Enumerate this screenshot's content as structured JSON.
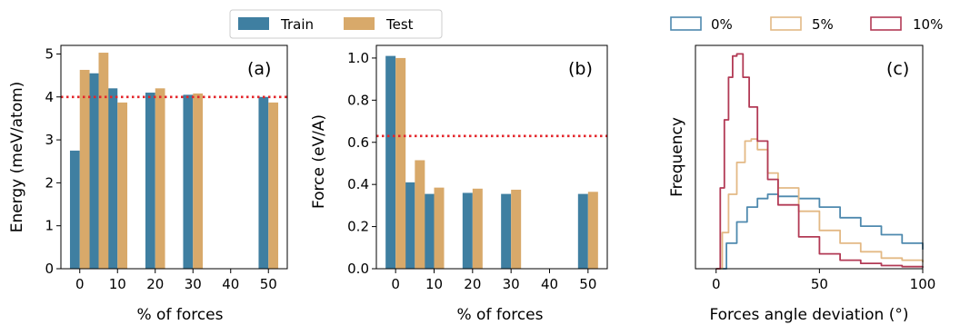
{
  "colors": {
    "train": "#3f7fa1",
    "test": "#d8a96a",
    "ref_line": "#e3262b",
    "h0": "#4e89ae",
    "h5": "#e3b985",
    "h10": "#b23a55"
  },
  "legend_left": {
    "items": [
      "Train",
      "Test"
    ]
  },
  "legend_right": {
    "items": [
      "0%",
      "5%",
      "10%"
    ]
  },
  "chart_data": [
    {
      "type": "bar",
      "panel_label": "(a)",
      "xlabel": "% of forces",
      "ylabel": "Energy (meV/atom)",
      "x": [
        0,
        5,
        10,
        20,
        30,
        50
      ],
      "xticks": [
        "0",
        "10",
        "20",
        "30",
        "40",
        "50"
      ],
      "yticks": [
        "0",
        "1",
        "2",
        "3",
        "4",
        "5"
      ],
      "xlim": [
        -5,
        55
      ],
      "ylim": [
        0,
        5.2
      ],
      "series": [
        {
          "name": "Train",
          "values": [
            2.75,
            4.55,
            4.2,
            4.1,
            4.05,
            4.0
          ]
        },
        {
          "name": "Test",
          "values": [
            4.63,
            5.03,
            3.87,
            4.2,
            4.08,
            3.87
          ]
        }
      ],
      "ref_line": 4.0
    },
    {
      "type": "bar",
      "panel_label": "(b)",
      "xlabel": "% of forces",
      "ylabel": "Force (eV/A)",
      "x": [
        0,
        5,
        10,
        20,
        30,
        50
      ],
      "xticks": [
        "0",
        "10",
        "20",
        "30",
        "40",
        "50"
      ],
      "yticks": [
        "0.0",
        "0.2",
        "0.4",
        "0.6",
        "0.8",
        "1.0"
      ],
      "xlim": [
        -5,
        55
      ],
      "ylim": [
        0,
        1.06
      ],
      "series": [
        {
          "name": "Train",
          "values": [
            1.01,
            0.41,
            0.355,
            0.36,
            0.355,
            0.355
          ]
        },
        {
          "name": "Test",
          "values": [
            1.0,
            0.515,
            0.385,
            0.38,
            0.375,
            0.365
          ]
        }
      ],
      "ref_line": 0.63
    },
    {
      "type": "line",
      "panel_label": "(c)",
      "xlabel": "Forces angle deviation (°)",
      "ylabel": "Frequency",
      "xticks": [
        "0",
        "50",
        "100"
      ],
      "xlim": [
        -10,
        100
      ],
      "ylim": [
        0,
        1.05
      ],
      "series": [
        {
          "name": "0%",
          "x": [
            0,
            5,
            10,
            15,
            20,
            25,
            30,
            40,
            50,
            60,
            70,
            80,
            90,
            100
          ],
          "values": [
            0,
            0.12,
            0.22,
            0.29,
            0.33,
            0.35,
            0.34,
            0.33,
            0.29,
            0.24,
            0.2,
            0.16,
            0.12,
            0.09
          ]
        },
        {
          "name": "5%",
          "x": [
            0,
            3,
            6,
            10,
            14,
            17,
            20,
            25,
            30,
            40,
            50,
            60,
            70,
            80,
            90,
            100
          ],
          "values": [
            0,
            0.17,
            0.35,
            0.5,
            0.6,
            0.61,
            0.56,
            0.45,
            0.38,
            0.27,
            0.18,
            0.12,
            0.08,
            0.05,
            0.04,
            0.03
          ]
        },
        {
          "name": "10%",
          "x": [
            0,
            2,
            4,
            6,
            8,
            10,
            13,
            16,
            20,
            25,
            30,
            40,
            50,
            60,
            70,
            80,
            90,
            100
          ],
          "values": [
            0,
            0.38,
            0.7,
            0.9,
            1.0,
            1.01,
            0.9,
            0.76,
            0.6,
            0.42,
            0.3,
            0.15,
            0.07,
            0.04,
            0.025,
            0.015,
            0.01,
            0.005
          ]
        }
      ]
    }
  ]
}
